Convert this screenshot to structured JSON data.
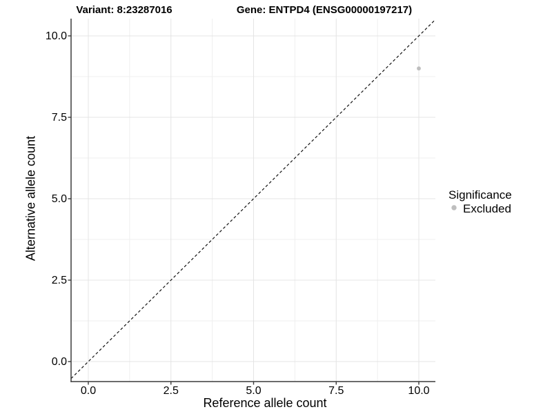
{
  "titles": {
    "variant": "Variant: 8:23287016",
    "gene": "Gene: ENTPD4 (ENSG00000197217)"
  },
  "axes": {
    "x_label": "Reference allele count",
    "y_label": "Alternative allele count"
  },
  "legend": {
    "title": "Significance",
    "items": [
      {
        "label": "Excluded",
        "color": "#bebebe"
      }
    ]
  },
  "chart_data": {
    "type": "scatter",
    "title": "Variant: 8:23287016 | Gene: ENTPD4 (ENSG00000197217)",
    "xlabel": "Reference allele count",
    "ylabel": "Alternative allele count",
    "xlim": [
      -0.52,
      10.5
    ],
    "ylim": [
      -0.61,
      10.53
    ],
    "x_ticks": [
      0,
      2.5,
      5,
      7.5,
      10
    ],
    "y_ticks": [
      0,
      2.5,
      5,
      7.5,
      10
    ],
    "x_tick_labels": [
      "0.0",
      "2.5",
      "5.0",
      "7.5",
      "10.0"
    ],
    "y_tick_labels": [
      "0.0",
      "2.5",
      "5.0",
      "7.5",
      "10.0"
    ],
    "grid": "major+minor",
    "legend_position": "right",
    "series": [
      {
        "name": "Excluded",
        "color": "#bebebe",
        "points": [
          {
            "x": 10,
            "y": 9
          }
        ]
      }
    ],
    "reference_line": {
      "description": "identity line y = x",
      "style": "dashed",
      "color": "#111111"
    },
    "colors": {
      "grid_major": "#e4e4e4",
      "grid_minor": "#efefef",
      "axis": "#3a3a3a",
      "identity_line": "#111111",
      "background": "#ffffff"
    }
  }
}
